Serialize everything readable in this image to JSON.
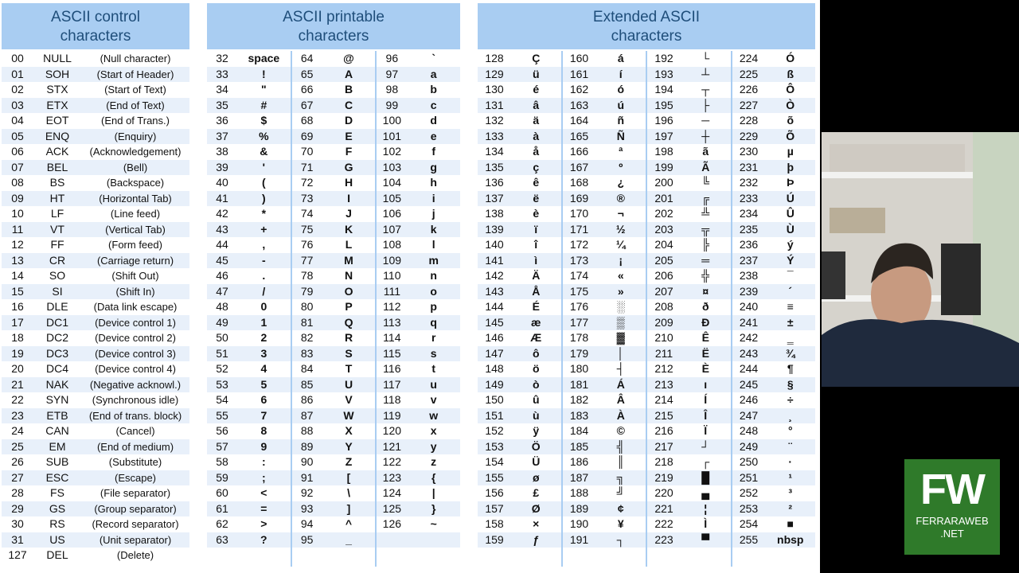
{
  "panels": [
    {
      "title": "ASCII control\ncharacters"
    },
    {
      "title": "ASCII printable\ncharacters"
    },
    {
      "title": "Extended ASCII\ncharacters"
    }
  ],
  "control": [
    [
      "00",
      "NULL",
      "(Null character)"
    ],
    [
      "01",
      "SOH",
      "(Start of Header)"
    ],
    [
      "02",
      "STX",
      "(Start of Text)"
    ],
    [
      "03",
      "ETX",
      "(End of Text)"
    ],
    [
      "04",
      "EOT",
      "(End of Trans.)"
    ],
    [
      "05",
      "ENQ",
      "(Enquiry)"
    ],
    [
      "06",
      "ACK",
      "(Acknowledgement)"
    ],
    [
      "07",
      "BEL",
      "(Bell)"
    ],
    [
      "08",
      "BS",
      "(Backspace)"
    ],
    [
      "09",
      "HT",
      "(Horizontal Tab)"
    ],
    [
      "10",
      "LF",
      "(Line feed)"
    ],
    [
      "11",
      "VT",
      "(Vertical Tab)"
    ],
    [
      "12",
      "FF",
      "(Form feed)"
    ],
    [
      "13",
      "CR",
      "(Carriage return)"
    ],
    [
      "14",
      "SO",
      "(Shift Out)"
    ],
    [
      "15",
      "SI",
      "(Shift In)"
    ],
    [
      "16",
      "DLE",
      "(Data link escape)"
    ],
    [
      "17",
      "DC1",
      "(Device control 1)"
    ],
    [
      "18",
      "DC2",
      "(Device control 2)"
    ],
    [
      "19",
      "DC3",
      "(Device control 3)"
    ],
    [
      "20",
      "DC4",
      "(Device control 4)"
    ],
    [
      "21",
      "NAK",
      "(Negative acknowl.)"
    ],
    [
      "22",
      "SYN",
      "(Synchronous idle)"
    ],
    [
      "23",
      "ETB",
      "(End of trans. block)"
    ],
    [
      "24",
      "CAN",
      "(Cancel)"
    ],
    [
      "25",
      "EM",
      "(End of medium)"
    ],
    [
      "26",
      "SUB",
      "(Substitute)"
    ],
    [
      "27",
      "ESC",
      "(Escape)"
    ],
    [
      "28",
      "FS",
      "(File separator)"
    ],
    [
      "29",
      "GS",
      "(Group separator)"
    ],
    [
      "30",
      "RS",
      "(Record separator)"
    ],
    [
      "31",
      "US",
      "(Unit separator)"
    ],
    [
      "127",
      "DEL",
      "(Delete)"
    ]
  ],
  "printable": [
    [
      [
        "32",
        "space"
      ],
      [
        "33",
        "!"
      ],
      [
        "34",
        "\""
      ],
      [
        "35",
        "#"
      ],
      [
        "36",
        "$"
      ],
      [
        "37",
        "%"
      ],
      [
        "38",
        "&"
      ],
      [
        "39",
        "'"
      ],
      [
        "40",
        "("
      ],
      [
        "41",
        ")"
      ],
      [
        "42",
        "*"
      ],
      [
        "43",
        "+"
      ],
      [
        "44",
        ","
      ],
      [
        "45",
        "-"
      ],
      [
        "46",
        "."
      ],
      [
        "47",
        "/"
      ],
      [
        "48",
        "0"
      ],
      [
        "49",
        "1"
      ],
      [
        "50",
        "2"
      ],
      [
        "51",
        "3"
      ],
      [
        "52",
        "4"
      ],
      [
        "53",
        "5"
      ],
      [
        "54",
        "6"
      ],
      [
        "55",
        "7"
      ],
      [
        "56",
        "8"
      ],
      [
        "57",
        "9"
      ],
      [
        "58",
        ":"
      ],
      [
        "59",
        ";"
      ],
      [
        "60",
        "<"
      ],
      [
        "61",
        "="
      ],
      [
        "62",
        ">"
      ],
      [
        "63",
        "?"
      ]
    ],
    [
      [
        "64",
        "@"
      ],
      [
        "65",
        "A"
      ],
      [
        "66",
        "B"
      ],
      [
        "67",
        "C"
      ],
      [
        "68",
        "D"
      ],
      [
        "69",
        "E"
      ],
      [
        "70",
        "F"
      ],
      [
        "71",
        "G"
      ],
      [
        "72",
        "H"
      ],
      [
        "73",
        "I"
      ],
      [
        "74",
        "J"
      ],
      [
        "75",
        "K"
      ],
      [
        "76",
        "L"
      ],
      [
        "77",
        "M"
      ],
      [
        "78",
        "N"
      ],
      [
        "79",
        "O"
      ],
      [
        "80",
        "P"
      ],
      [
        "81",
        "Q"
      ],
      [
        "82",
        "R"
      ],
      [
        "83",
        "S"
      ],
      [
        "84",
        "T"
      ],
      [
        "85",
        "U"
      ],
      [
        "86",
        "V"
      ],
      [
        "87",
        "W"
      ],
      [
        "88",
        "X"
      ],
      [
        "89",
        "Y"
      ],
      [
        "90",
        "Z"
      ],
      [
        "91",
        "["
      ],
      [
        "92",
        "\\"
      ],
      [
        "93",
        "]"
      ],
      [
        "94",
        "^"
      ],
      [
        "95",
        "_"
      ]
    ],
    [
      [
        "96",
        "`"
      ],
      [
        "97",
        "a"
      ],
      [
        "98",
        "b"
      ],
      [
        "99",
        "c"
      ],
      [
        "100",
        "d"
      ],
      [
        "101",
        "e"
      ],
      [
        "102",
        "f"
      ],
      [
        "103",
        "g"
      ],
      [
        "104",
        "h"
      ],
      [
        "105",
        "i"
      ],
      [
        "106",
        "j"
      ],
      [
        "107",
        "k"
      ],
      [
        "108",
        "l"
      ],
      [
        "109",
        "m"
      ],
      [
        "110",
        "n"
      ],
      [
        "111",
        "o"
      ],
      [
        "112",
        "p"
      ],
      [
        "113",
        "q"
      ],
      [
        "114",
        "r"
      ],
      [
        "115",
        "s"
      ],
      [
        "116",
        "t"
      ],
      [
        "117",
        "u"
      ],
      [
        "118",
        "v"
      ],
      [
        "119",
        "w"
      ],
      [
        "120",
        "x"
      ],
      [
        "121",
        "y"
      ],
      [
        "122",
        "z"
      ],
      [
        "123",
        "{"
      ],
      [
        "124",
        "|"
      ],
      [
        "125",
        "}"
      ],
      [
        "126",
        "~"
      ]
    ]
  ],
  "extended": [
    [
      [
        "128",
        "Ç"
      ],
      [
        "129",
        "ü"
      ],
      [
        "130",
        "é"
      ],
      [
        "131",
        "â"
      ],
      [
        "132",
        "ä"
      ],
      [
        "133",
        "à"
      ],
      [
        "134",
        "å"
      ],
      [
        "135",
        "ç"
      ],
      [
        "136",
        "ê"
      ],
      [
        "137",
        "ë"
      ],
      [
        "138",
        "è"
      ],
      [
        "139",
        "ï"
      ],
      [
        "140",
        "î"
      ],
      [
        "141",
        "ì"
      ],
      [
        "142",
        "Ä"
      ],
      [
        "143",
        "Å"
      ],
      [
        "144",
        "É"
      ],
      [
        "145",
        "æ"
      ],
      [
        "146",
        "Æ"
      ],
      [
        "147",
        "ô"
      ],
      [
        "148",
        "ö"
      ],
      [
        "149",
        "ò"
      ],
      [
        "150",
        "û"
      ],
      [
        "151",
        "ù"
      ],
      [
        "152",
        "ÿ"
      ],
      [
        "153",
        "Ö"
      ],
      [
        "154",
        "Ü"
      ],
      [
        "155",
        "ø"
      ],
      [
        "156",
        "£"
      ],
      [
        "157",
        "Ø"
      ],
      [
        "158",
        "×"
      ],
      [
        "159",
        "ƒ"
      ]
    ],
    [
      [
        "160",
        "á"
      ],
      [
        "161",
        "í"
      ],
      [
        "162",
        "ó"
      ],
      [
        "163",
        "ú"
      ],
      [
        "164",
        "ñ"
      ],
      [
        "165",
        "Ñ"
      ],
      [
        "166",
        "ª"
      ],
      [
        "167",
        "º"
      ],
      [
        "168",
        "¿"
      ],
      [
        "169",
        "®"
      ],
      [
        "170",
        "¬"
      ],
      [
        "171",
        "½"
      ],
      [
        "172",
        "¼"
      ],
      [
        "173",
        "¡"
      ],
      [
        "174",
        "«"
      ],
      [
        "175",
        "»"
      ],
      [
        "176",
        "░"
      ],
      [
        "177",
        "▒"
      ],
      [
        "178",
        "▓"
      ],
      [
        "179",
        "│"
      ],
      [
        "180",
        "┤"
      ],
      [
        "181",
        "Á"
      ],
      [
        "182",
        "Â"
      ],
      [
        "183",
        "À"
      ],
      [
        "184",
        "©"
      ],
      [
        "185",
        "╣"
      ],
      [
        "186",
        "║"
      ],
      [
        "187",
        "╗"
      ],
      [
        "188",
        "╝"
      ],
      [
        "189",
        "¢"
      ],
      [
        "190",
        "¥"
      ],
      [
        "191",
        "┐"
      ]
    ],
    [
      [
        "192",
        "└"
      ],
      [
        "193",
        "┴"
      ],
      [
        "194",
        "┬"
      ],
      [
        "195",
        "├"
      ],
      [
        "196",
        "─"
      ],
      [
        "197",
        "┼"
      ],
      [
        "198",
        "ã"
      ],
      [
        "199",
        "Ã"
      ],
      [
        "200",
        "╚"
      ],
      [
        "201",
        "╔"
      ],
      [
        "202",
        "╩"
      ],
      [
        "203",
        "╦"
      ],
      [
        "204",
        "╠"
      ],
      [
        "205",
        "═"
      ],
      [
        "206",
        "╬"
      ],
      [
        "207",
        "¤"
      ],
      [
        "208",
        "ð"
      ],
      [
        "209",
        "Ð"
      ],
      [
        "210",
        "Ê"
      ],
      [
        "211",
        "Ë"
      ],
      [
        "212",
        "È"
      ],
      [
        "213",
        "ı"
      ],
      [
        "214",
        "Í"
      ],
      [
        "215",
        "Î"
      ],
      [
        "216",
        "Ï"
      ],
      [
        "217",
        "┘"
      ],
      [
        "218",
        "┌"
      ],
      [
        "219",
        "█"
      ],
      [
        "220",
        "▄"
      ],
      [
        "221",
        "¦"
      ],
      [
        "222",
        "Ì"
      ],
      [
        "223",
        "▀"
      ]
    ],
    [
      [
        "224",
        "Ó"
      ],
      [
        "225",
        "ß"
      ],
      [
        "226",
        "Ô"
      ],
      [
        "227",
        "Ò"
      ],
      [
        "228",
        "õ"
      ],
      [
        "229",
        "Õ"
      ],
      [
        "230",
        "µ"
      ],
      [
        "231",
        "þ"
      ],
      [
        "232",
        "Þ"
      ],
      [
        "233",
        "Ú"
      ],
      [
        "234",
        "Û"
      ],
      [
        "235",
        "Ù"
      ],
      [
        "236",
        "ý"
      ],
      [
        "237",
        "Ý"
      ],
      [
        "238",
        "¯"
      ],
      [
        "239",
        "´"
      ],
      [
        "240",
        "≡"
      ],
      [
        "241",
        "±"
      ],
      [
        "242",
        "‗"
      ],
      [
        "243",
        "¾"
      ],
      [
        "244",
        "¶"
      ],
      [
        "245",
        "§"
      ],
      [
        "246",
        "÷"
      ],
      [
        "247",
        "¸"
      ],
      [
        "248",
        "°"
      ],
      [
        "249",
        "¨"
      ],
      [
        "250",
        "·"
      ],
      [
        "251",
        "¹"
      ],
      [
        "252",
        "³"
      ],
      [
        "253",
        "²"
      ],
      [
        "254",
        "■"
      ],
      [
        "255",
        "nbsp"
      ]
    ]
  ],
  "logo": {
    "big": "FW",
    "small1": "FERRARAWEB",
    "small2": ".NET"
  }
}
